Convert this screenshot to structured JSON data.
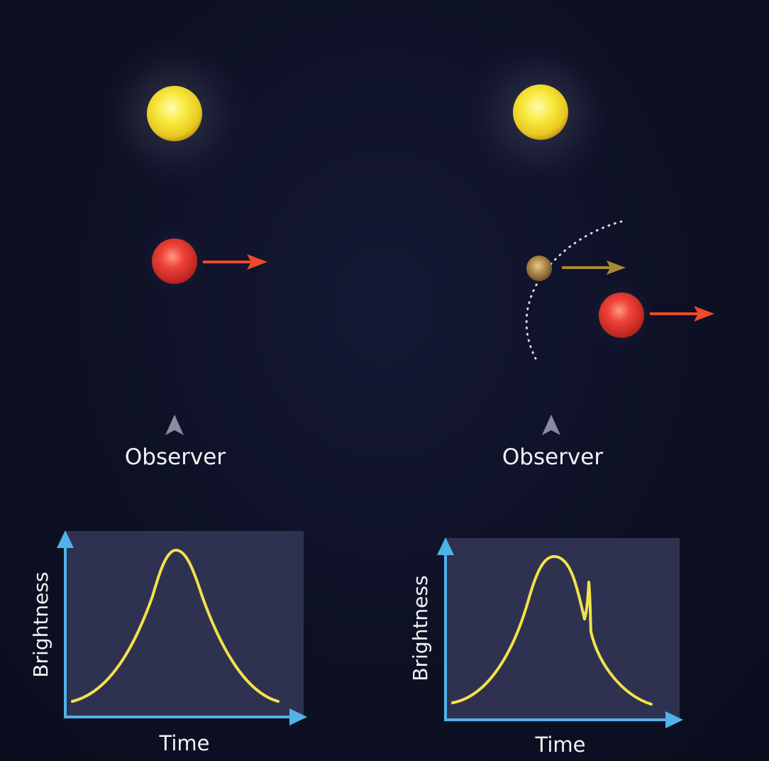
{
  "colors": {
    "background": "#0e1124",
    "star": "#f5e23a",
    "lens_star": "#e03a2e",
    "planet": "#b08a4a",
    "arrow_red": "#ef4a2a",
    "arrow_gold": "#a88a32",
    "axis": "#4fb3ea",
    "plot_bg": "#2f3150",
    "curve": "#f2e24a",
    "observer": "#8c8aa0"
  },
  "left_panel": {
    "observer_label": "Observer",
    "graph": {
      "ylabel": "Brightness",
      "xlabel": "Time"
    }
  },
  "right_panel": {
    "observer_label": "Observer",
    "graph": {
      "ylabel": "Brightness",
      "xlabel": "Time"
    }
  }
}
